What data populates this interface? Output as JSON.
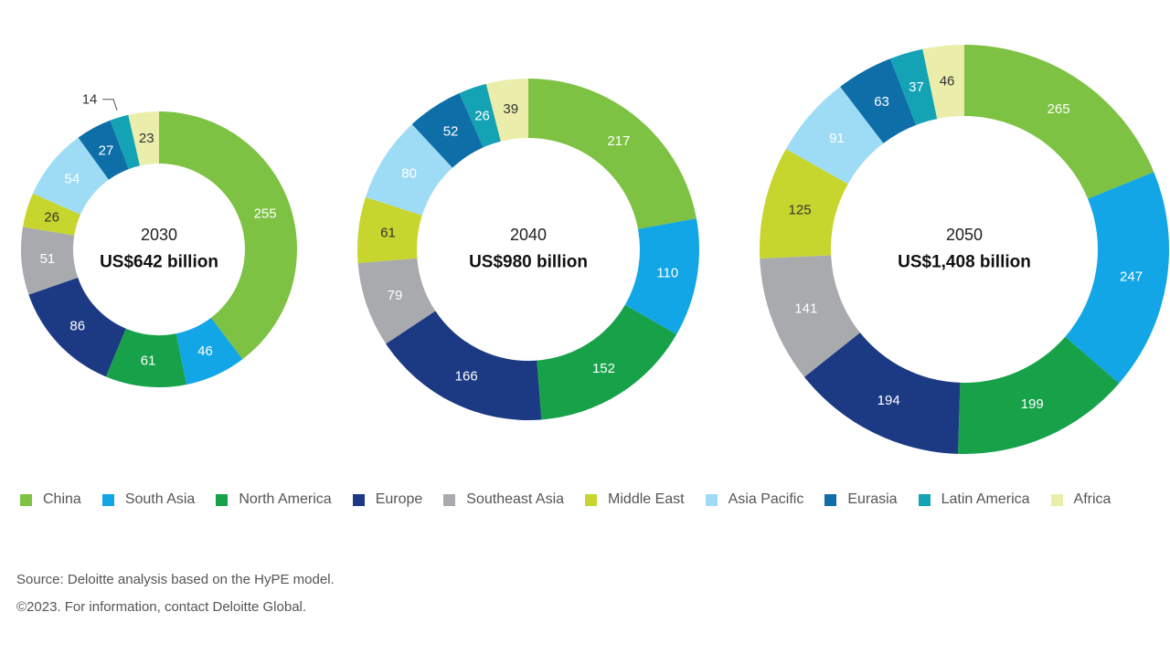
{
  "legend": [
    {
      "label": "China",
      "color": "#7dc242"
    },
    {
      "label": "South Asia",
      "color": "#12a6e6"
    },
    {
      "label": "North America",
      "color": "#17a24a"
    },
    {
      "label": "Europe",
      "color": "#1b3a83"
    },
    {
      "label": "Southeast Asia",
      "color": "#a8aaad"
    },
    {
      "label": "Middle East",
      "color": "#c7d62e"
    },
    {
      "label": "Asia Pacific",
      "color": "#9edcf6"
    },
    {
      "label": "Eurasia",
      "color": "#0e6ea8"
    },
    {
      "label": "Latin America",
      "color": "#14a3b5"
    },
    {
      "label": "Africa",
      "color": "#eaeeaa"
    }
  ],
  "chart_data": [
    {
      "type": "donut",
      "year": "2030",
      "total_label": "US$642 billion",
      "categories": [
        "China",
        "South Asia",
        "North America",
        "Europe",
        "Southeast Asia",
        "Middle East",
        "Asia Pacific",
        "Eurasia",
        "Latin America",
        "Africa"
      ],
      "values": [
        255,
        46,
        61,
        86,
        51,
        26,
        54,
        27,
        14,
        23
      ]
    },
    {
      "type": "donut",
      "year": "2040",
      "total_label": "US$980 billion",
      "categories": [
        "China",
        "South Asia",
        "North America",
        "Europe",
        "Southeast Asia",
        "Middle East",
        "Asia Pacific",
        "Eurasia",
        "Latin America",
        "Africa"
      ],
      "values": [
        217,
        110,
        152,
        166,
        79,
        61,
        80,
        52,
        26,
        39
      ]
    },
    {
      "type": "donut",
      "year": "2050",
      "total_label": "US$1,408 billion",
      "categories": [
        "China",
        "South Asia",
        "North America",
        "Europe",
        "Southeast Asia",
        "Middle East",
        "Asia Pacific",
        "Eurasia",
        "Latin America",
        "Africa"
      ],
      "values": [
        265,
        247,
        199,
        194,
        141,
        125,
        91,
        63,
        37,
        46
      ]
    }
  ],
  "source": "Source: Deloitte analysis based on the HyPE model.",
  "copyright": "©2023. For information, contact Deloitte Global."
}
